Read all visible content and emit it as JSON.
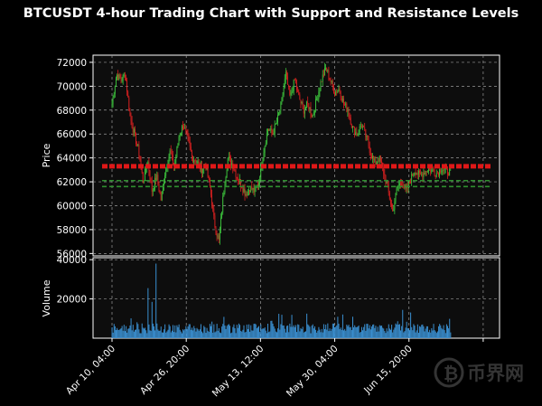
{
  "chart_data": {
    "type": "candlestick",
    "title": "BTCUSDT 4-hour Trading Chart with Support and Resistance Levels",
    "price_panel": {
      "ylabel": "Price",
      "ylim": [
        55800,
        72600
      ],
      "yticks": [
        56000,
        58000,
        60000,
        62000,
        64000,
        66000,
        68000,
        70000,
        72000
      ],
      "ytick_labels": [
        "56000",
        "58000",
        "60000",
        "62000",
        "64000",
        "66000",
        "68000",
        "70000",
        "72000"
      ],
      "resistance_level": 63300,
      "support_levels": [
        62100,
        61600
      ],
      "grid": true
    },
    "volume_panel": {
      "ylabel": "Volume",
      "ylim": [
        0,
        41000
      ],
      "yticks": [
        20000,
        40000
      ],
      "ytick_labels": [
        "20000",
        "40000"
      ],
      "grid": true
    },
    "x_axis": {
      "xlim": [
        0,
        76.0
      ],
      "ticks": [
        0,
        16.67,
        33.33,
        50.0,
        66.67,
        83.33
      ],
      "tick_labels": [
        "Apr 10, 04:00",
        "Apr 26, 20:00",
        "May 13, 12:00",
        "May 30, 04:00",
        "Jun 15, 20:00",
        ""
      ]
    },
    "colors": {
      "up": "#3cc23c",
      "down": "#d62020",
      "volume": "#3a8fd0",
      "resistance": "#e01818",
      "support": "#2f8f2f",
      "panel_bg": "#0d0d0d",
      "grid": "#9a9a9a"
    },
    "anchors": [
      [
        0,
        68500
      ],
      [
        1,
        71000
      ],
      [
        2,
        70500
      ],
      [
        3,
        71000
      ],
      [
        4,
        67500
      ],
      [
        5,
        66000
      ],
      [
        6,
        64500
      ],
      [
        7,
        62000
      ],
      [
        8,
        63800
      ],
      [
        9,
        61200
      ],
      [
        10,
        62500
      ],
      [
        11,
        60500
      ],
      [
        12,
        63000
      ],
      [
        13,
        64500
      ],
      [
        14,
        63200
      ],
      [
        15,
        65800
      ],
      [
        16,
        66800
      ],
      [
        17,
        65500
      ],
      [
        18,
        64000
      ],
      [
        19,
        63800
      ],
      [
        20,
        63000
      ],
      [
        21,
        63500
      ],
      [
        22,
        61500
      ],
      [
        23,
        58500
      ],
      [
        24,
        57000
      ],
      [
        25,
        61000
      ],
      [
        26,
        64000
      ],
      [
        27,
        63500
      ],
      [
        28,
        62500
      ],
      [
        29,
        61800
      ],
      [
        30,
        61000
      ],
      [
        31,
        61500
      ],
      [
        32,
        61200
      ],
      [
        33,
        62000
      ],
      [
        34,
        64500
      ],
      [
        35,
        66500
      ],
      [
        36,
        66000
      ],
      [
        37,
        67000
      ],
      [
        38,
        68500
      ],
      [
        39,
        71000
      ],
      [
        40,
        69000
      ],
      [
        41,
        70500
      ],
      [
        42,
        69000
      ],
      [
        43,
        68000
      ],
      [
        44,
        68500
      ],
      [
        45,
        67500
      ],
      [
        46,
        69000
      ],
      [
        47,
        70500
      ],
      [
        48,
        71500
      ],
      [
        49,
        70500
      ],
      [
        50,
        69500
      ],
      [
        51,
        69800
      ],
      [
        52,
        68500
      ],
      [
        53,
        68000
      ],
      [
        54,
        66500
      ],
      [
        55,
        66000
      ],
      [
        56,
        66800
      ],
      [
        57,
        65800
      ],
      [
        58,
        64500
      ],
      [
        59,
        63500
      ],
      [
        60,
        64000
      ],
      [
        61,
        62800
      ],
      [
        62,
        61200
      ],
      [
        63,
        59500
      ],
      [
        64,
        61500
      ],
      [
        65,
        62000
      ],
      [
        66,
        61200
      ],
      [
        67,
        62200
      ],
      [
        68,
        63000
      ],
      [
        69,
        62500
      ],
      [
        70,
        62800
      ],
      [
        71,
        63100
      ],
      [
        72,
        62900
      ],
      [
        73,
        62700
      ],
      [
        74,
        63200
      ],
      [
        75,
        62800
      ],
      [
        76,
        62900
      ]
    ],
    "extra_x_positions": [
      [
        63.5,
        "58400"
      ]
    ]
  }
}
